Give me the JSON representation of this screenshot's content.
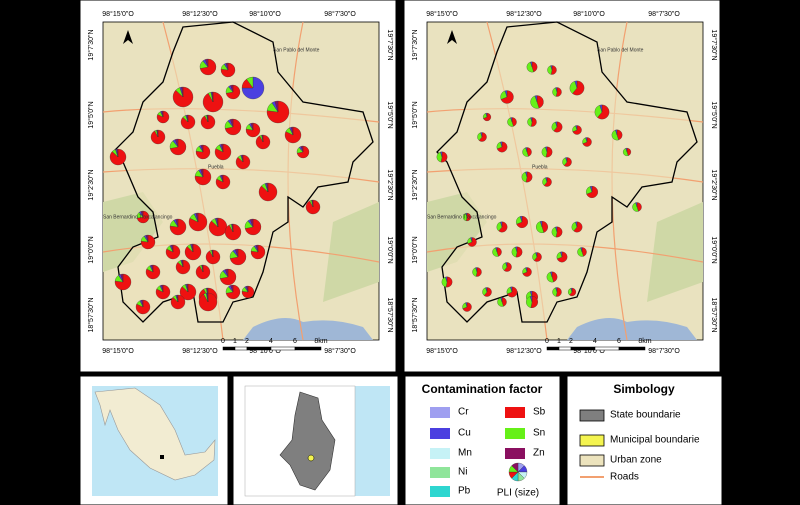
{
  "map": {
    "lon_labels": [
      "98°15'0\"O",
      "98°12'30\"O",
      "98°10'0\"O",
      "98°7'30\"O"
    ],
    "lat_labels": [
      "19°7'30\"N",
      "19°5'0\"N",
      "19°2'30\"N",
      "19°0'0\"N",
      "18°57'30\"N"
    ],
    "scale_labels": [
      "0",
      "1",
      "2",
      "4",
      "6",
      "8km"
    ],
    "places": [
      "Puebla",
      "San Pablo del Monte",
      "San Bernardino Tlaxcalancingo"
    ]
  },
  "contamination_factor": {
    "title": "Contamination factor",
    "items": [
      {
        "label": "Cr",
        "color": "#9f9ff0"
      },
      {
        "label": "Cu",
        "color": "#4b3fe0"
      },
      {
        "label": "Mn",
        "color": "#c6f2f6"
      },
      {
        "label": "Ni",
        "color": "#8fe59a"
      },
      {
        "label": "Pb",
        "color": "#2ed6d0"
      },
      {
        "label": "Sb",
        "color": "#ee1111"
      },
      {
        "label": "Sn",
        "color": "#66f018"
      },
      {
        "label": "Zn",
        "color": "#8a1060"
      }
    ],
    "pli": "PLI (size)"
  },
  "simbology": {
    "title": "Simbology",
    "items": [
      {
        "label": "State boundarie",
        "color": "#7f7f7f"
      },
      {
        "label": "Municipal boundarie",
        "color": "#f4f450"
      },
      {
        "label": "Urban zone",
        "color": "#ece3bd"
      },
      {
        "label": "Roads",
        "color": "#f2a070"
      }
    ]
  }
}
